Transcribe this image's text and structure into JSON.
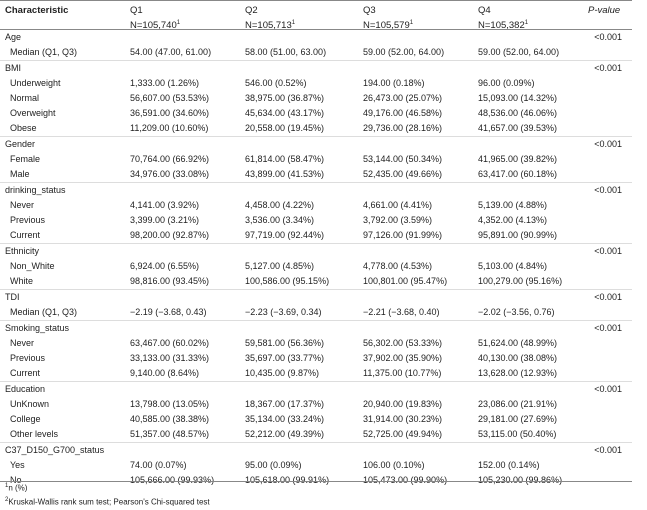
{
  "header": {
    "characteristic": "Characteristic",
    "pvalue": "P-value",
    "columns": [
      {
        "label": "Q1",
        "n": "N=105,740",
        "sup": "1"
      },
      {
        "label": "Q2",
        "n": "N=105,713",
        "sup": "1"
      },
      {
        "label": "Q3",
        "n": "N=105,579",
        "sup": "1"
      },
      {
        "label": "Q4",
        "n": "N=105,382",
        "sup": "1"
      }
    ]
  },
  "groups": [
    {
      "name": "Age",
      "p": "<0.001",
      "rows": [
        {
          "label": "Median (Q1, Q3)",
          "values": [
            "54.00 (47.00, 61.00)",
            "58.00 (51.00, 63.00)",
            "59.00 (52.00, 64.00)",
            "59.00 (52.00, 64.00)"
          ]
        }
      ]
    },
    {
      "name": "BMI",
      "p": "<0.001",
      "rows": [
        {
          "label": "Underweight",
          "values": [
            "1,333.00 (1.26%)",
            "546.00 (0.52%)",
            "194.00 (0.18%)",
            "96.00 (0.09%)"
          ]
        },
        {
          "label": "Normal",
          "values": [
            "56,607.00 (53.53%)",
            "38,975.00 (36.87%)",
            "26,473.00 (25.07%)",
            "15,093.00 (14.32%)"
          ]
        },
        {
          "label": "Overweight",
          "values": [
            "36,591.00 (34.60%)",
            "45,634.00 (43.17%)",
            "49,176.00 (46.58%)",
            "48,536.00 (46.06%)"
          ]
        },
        {
          "label": "Obese",
          "values": [
            "11,209.00 (10.60%)",
            "20,558.00 (19.45%)",
            "29,736.00 (28.16%)",
            "41,657.00 (39.53%)"
          ]
        }
      ]
    },
    {
      "name": "Gender",
      "p": "<0.001",
      "rows": [
        {
          "label": "Female",
          "values": [
            "70,764.00 (66.92%)",
            "61,814.00 (58.47%)",
            "53,144.00 (50.34%)",
            "41,965.00 (39.82%)"
          ]
        },
        {
          "label": "Male",
          "values": [
            "34,976.00 (33.08%)",
            "43,899.00 (41.53%)",
            "52,435.00 (49.66%)",
            "63,417.00 (60.18%)"
          ]
        }
      ]
    },
    {
      "name": "drinking_status",
      "p": "<0.001",
      "rows": [
        {
          "label": "Never",
          "values": [
            "4,141.00 (3.92%)",
            "4,458.00 (4.22%)",
            "4,661.00 (4.41%)",
            "5,139.00 (4.88%)"
          ]
        },
        {
          "label": "Previous",
          "values": [
            "3,399.00 (3.21%)",
            "3,536.00 (3.34%)",
            "3,792.00 (3.59%)",
            "4,352.00 (4.13%)"
          ]
        },
        {
          "label": "Current",
          "values": [
            "98,200.00 (92.87%)",
            "97,719.00 (92.44%)",
            "97,126.00 (91.99%)",
            "95,891.00 (90.99%)"
          ]
        }
      ]
    },
    {
      "name": "Ethnicity",
      "p": "<0.001",
      "rows": [
        {
          "label": "Non_White",
          "values": [
            "6,924.00 (6.55%)",
            "5,127.00 (4.85%)",
            "4,778.00 (4.53%)",
            "5,103.00 (4.84%)"
          ]
        },
        {
          "label": "White",
          "values": [
            "98,816.00 (93.45%)",
            "100,586.00 (95.15%)",
            "100,801.00 (95.47%)",
            "100,279.00 (95.16%)"
          ]
        }
      ]
    },
    {
      "name": "TDI",
      "p": "<0.001",
      "rows": [
        {
          "label": "Median (Q1, Q3)",
          "values": [
            "−2.19 (−3.68, 0.43)",
            "−2.23 (−3.69, 0.34)",
            "−2.21 (−3.68, 0.40)",
            "−2.02 (−3.56, 0.76)"
          ]
        }
      ]
    },
    {
      "name": "Smoking_status",
      "p": "<0.001",
      "rows": [
        {
          "label": "Never",
          "values": [
            "63,467.00 (60.02%)",
            "59,581.00 (56.36%)",
            "56,302.00 (53.33%)",
            "51,624.00 (48.99%)"
          ]
        },
        {
          "label": "Previous",
          "values": [
            "33,133.00 (31.33%)",
            "35,697.00 (33.77%)",
            "37,902.00 (35.90%)",
            "40,130.00 (38.08%)"
          ]
        },
        {
          "label": "Current",
          "values": [
            "9,140.00 (8.64%)",
            "10,435.00 (9.87%)",
            "11,375.00 (10.77%)",
            "13,628.00 (12.93%)"
          ]
        }
      ]
    },
    {
      "name": "Education",
      "p": "<0.001",
      "rows": [
        {
          "label": "UnKnown",
          "values": [
            "13,798.00 (13.05%)",
            "18,367.00 (17.37%)",
            "20,940.00 (19.83%)",
            "23,086.00 (21.91%)"
          ]
        },
        {
          "label": "College",
          "values": [
            "40,585.00 (38.38%)",
            "35,134.00 (33.24%)",
            "31,914.00 (30.23%)",
            "29,181.00 (27.69%)"
          ]
        },
        {
          "label": "Other levels",
          "values": [
            "51,357.00 (48.57%)",
            "52,212.00 (49.39%)",
            "52,725.00 (49.94%)",
            "53,115.00 (50.40%)"
          ]
        }
      ]
    },
    {
      "name": "C37_D150_G700_status",
      "p": "<0.001",
      "rows": [
        {
          "label": "Yes",
          "values": [
            "74.00 (0.07%)",
            "95.00 (0.09%)",
            "106.00 (0.10%)",
            "152.00 (0.14%)"
          ]
        },
        {
          "label": "No",
          "values": [
            "105,666.00 (99.93%)",
            "105,618.00 (99.91%)",
            "105,473.00 (99.90%)",
            "105,230.00 (99.86%)"
          ]
        }
      ]
    }
  ],
  "footnotes": [
    {
      "sup": "1",
      "text": "n (%)"
    },
    {
      "sup": "2",
      "text": "Kruskal-Wallis rank sum test; Pearson's Chi-squared test"
    }
  ]
}
